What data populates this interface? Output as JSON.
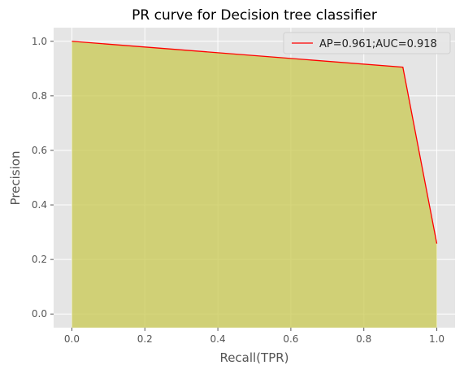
{
  "chart_data": {
    "type": "area",
    "title": "PR curve for Decision tree classifier",
    "xlabel": "Recall(TPR)",
    "ylabel": "Precision",
    "xlim": [
      -0.05,
      1.05
    ],
    "ylim": [
      -0.05,
      1.05
    ],
    "xticks": [
      "0.0",
      "0.2",
      "0.4",
      "0.6",
      "0.8",
      "1.0"
    ],
    "yticks": [
      "0.0",
      "0.2",
      "0.4",
      "0.6",
      "0.8",
      "1.0"
    ],
    "grid": true,
    "legend_position": "top-right",
    "series": [
      {
        "name": "AP=0.961;AUC=0.918",
        "x": [
          0.0,
          0.907,
          1.0
        ],
        "y": [
          1.0,
          0.905,
          0.258
        ],
        "line_color": "#ff0000",
        "fill_color": "#c8c850",
        "fill_baseline": -0.05
      }
    ]
  },
  "colors": {
    "plot_background": "#e5e5e5",
    "grid": "#ffffff"
  }
}
